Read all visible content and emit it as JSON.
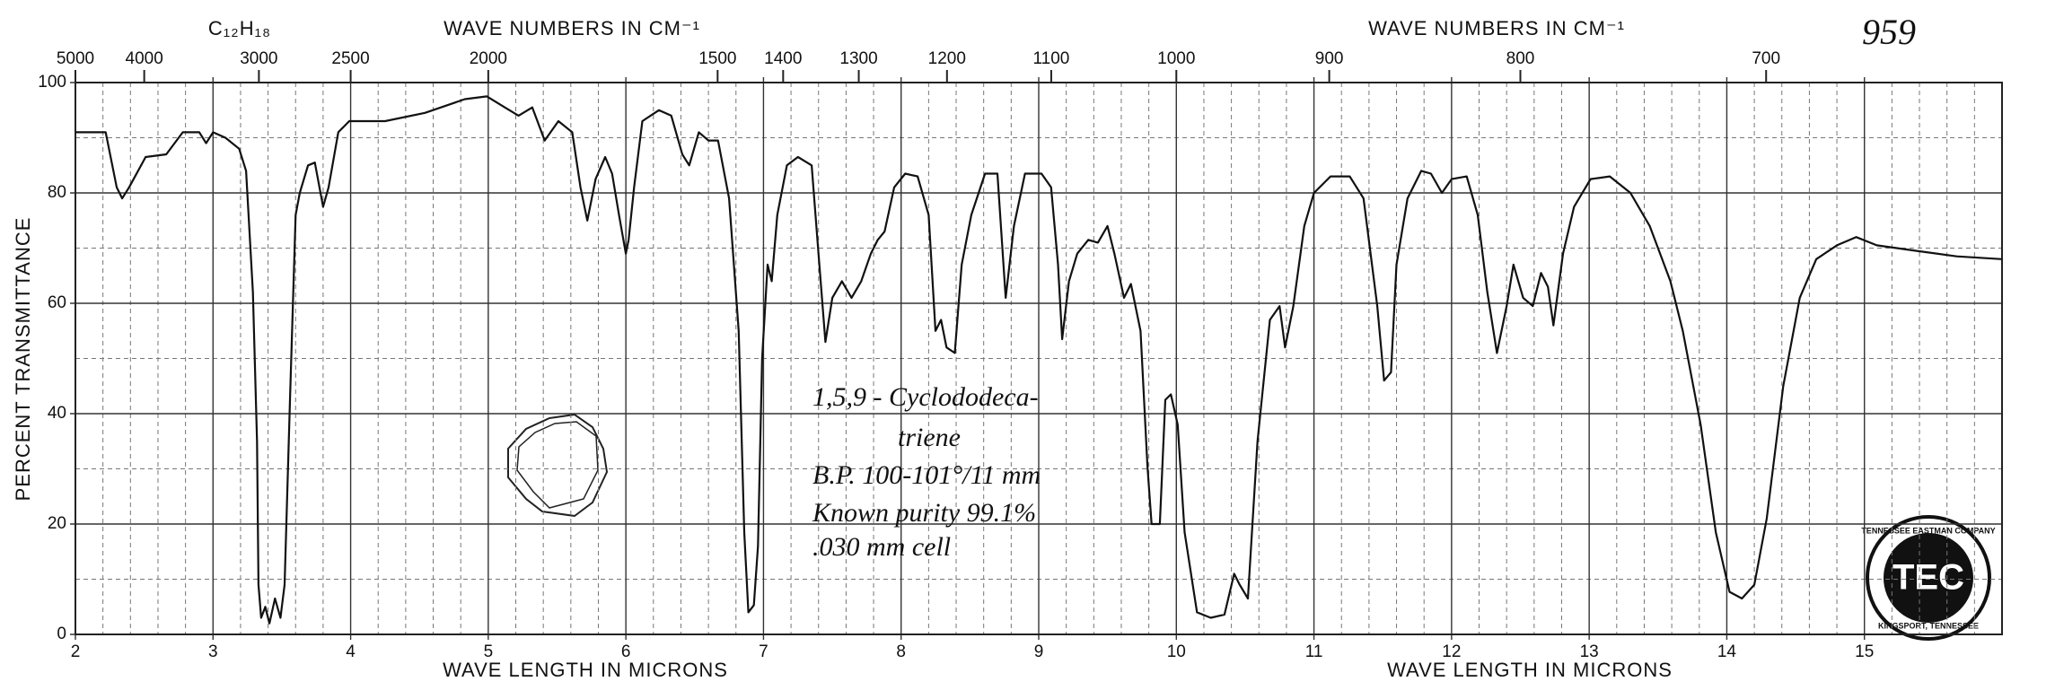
{
  "chart_data": {
    "type": "line",
    "formula": "C₁₂H₁₈",
    "spectrum_number": "959",
    "x2_label_left": "WAVE NUMBERS IN CM⁻¹",
    "x2_label_right": "WAVE NUMBERS IN CM⁻¹",
    "xlabel_left": "WAVE LENGTH IN MICRONS",
    "xlabel_right": "WAVE LENGTH IN MICRONS",
    "ylabel": "PERCENT TRANSMITTANCE",
    "annotations": [
      "1,5,9 - Cyclododeca-",
      "triene",
      "B.P. 100-101°/11 mm",
      "Known purity 99.1%",
      ".030 mm cell"
    ],
    "logo": {
      "top": "TENNESSEE EASTMAN COMPANY",
      "center": "TEC",
      "bottom": "KINGSPORT, TENNESSEE"
    },
    "color": "#111111",
    "grid": true,
    "xlim": [
      2,
      16
    ],
    "xticks": [
      2,
      3,
      4,
      5,
      6,
      7,
      8,
      9,
      10,
      11,
      12,
      13,
      14,
      15
    ],
    "x2ticks": [
      5000,
      4000,
      3000,
      2500,
      2000,
      1500,
      1400,
      1300,
      1200,
      1100,
      1000,
      900,
      800,
      700
    ],
    "ylim": [
      0,
      100
    ],
    "yticks": [
      0,
      20,
      40,
      60,
      80,
      100
    ],
    "x": [
      2.0,
      2.22,
      2.3,
      2.34,
      2.39,
      2.51,
      2.66,
      2.78,
      2.9,
      2.95,
      3.0,
      3.09,
      3.19,
      3.24,
      3.29,
      3.32,
      3.33,
      3.35,
      3.38,
      3.41,
      3.45,
      3.49,
      3.52,
      3.56,
      3.6,
      3.63,
      3.69,
      3.74,
      3.8,
      3.84,
      3.91,
      3.99,
      4.25,
      4.54,
      4.83,
      4.99,
      5.12,
      5.22,
      5.32,
      5.41,
      5.51,
      5.61,
      5.67,
      5.72,
      5.78,
      5.85,
      5.9,
      5.95,
      6.0,
      6.02,
      6.06,
      6.12,
      6.24,
      6.33,
      6.41,
      6.46,
      6.53,
      6.6,
      6.67,
      6.75,
      6.82,
      6.86,
      6.89,
      6.93,
      6.96,
      6.99,
      7.03,
      7.06,
      7.1,
      7.17,
      7.25,
      7.35,
      7.4,
      7.45,
      7.5,
      7.57,
      7.64,
      7.71,
      7.78,
      7.83,
      7.88,
      7.95,
      8.03,
      8.12,
      8.2,
      8.25,
      8.29,
      8.33,
      8.39,
      8.44,
      8.51,
      8.61,
      8.7,
      8.76,
      8.82,
      8.9,
      9.02,
      9.09,
      9.14,
      9.17,
      9.22,
      9.28,
      9.36,
      9.43,
      9.5,
      9.55,
      9.62,
      9.67,
      9.74,
      9.79,
      9.82,
      9.88,
      9.92,
      9.96,
      10.01,
      10.06,
      10.15,
      10.25,
      10.35,
      10.42,
      10.46,
      10.52,
      10.59,
      10.68,
      10.75,
      10.79,
      10.85,
      10.93,
      11.0,
      11.12,
      11.26,
      11.36,
      11.46,
      11.51,
      11.56,
      11.6,
      11.68,
      11.78,
      11.85,
      11.93,
      12.0,
      12.11,
      12.19,
      12.26,
      12.33,
      12.4,
      12.45,
      12.52,
      12.59,
      12.65,
      12.7,
      12.74,
      12.81,
      12.89,
      13.01,
      13.15,
      13.3,
      13.44,
      13.59,
      13.68,
      13.81,
      13.92,
      14.02,
      14.11,
      14.2,
      14.29,
      14.41,
      14.53,
      14.65,
      14.8,
      14.94,
      15.09,
      15.38,
      15.67,
      16.0
    ],
    "values": [
      91,
      91,
      81,
      79,
      81,
      86.5,
      87,
      91,
      91,
      89,
      91,
      90,
      88,
      84,
      62,
      35,
      9,
      3,
      5,
      2,
      6.5,
      3,
      9,
      43,
      76,
      80,
      85,
      85.5,
      77.5,
      81,
      91,
      93,
      93,
      94.5,
      97,
      97.5,
      95.5,
      94,
      95.5,
      89.5,
      93,
      91,
      81,
      75,
      82.5,
      86.5,
      83.5,
      76,
      69,
      71.5,
      81,
      93,
      95,
      94,
      87,
      85,
      91,
      89.5,
      89.5,
      79,
      55,
      18.5,
      4,
      5.3,
      16,
      50,
      67,
      64,
      76,
      85,
      86.5,
      85,
      69,
      53,
      61,
      64,
      61,
      64,
      69,
      71.5,
      73,
      81,
      83.5,
      83,
      76,
      55,
      57,
      52,
      51,
      67,
      76,
      83.5,
      83.5,
      61,
      74,
      83.5,
      83.5,
      81,
      67,
      53.5,
      64,
      69,
      71.5,
      71,
      74,
      69,
      61,
      63.5,
      55,
      30.5,
      20,
      20,
      42.5,
      43.5,
      38,
      18.5,
      4,
      3,
      3.6,
      11,
      9,
      6.5,
      35,
      57,
      59.5,
      52,
      59.5,
      74,
      80,
      83,
      83,
      79,
      59.5,
      46,
      47.5,
      67,
      79,
      84,
      83.5,
      80,
      82.5,
      83,
      76,
      62,
      51,
      59.5,
      67,
      61,
      59.5,
      65.5,
      63,
      56,
      69,
      77.5,
      82.5,
      83,
      80,
      74,
      64,
      55,
      38,
      18.5,
      7.7,
      6.5,
      9,
      21,
      45,
      61,
      68,
      70.5,
      72,
      70.5,
      69.5,
      68.5,
      68
    ]
  }
}
